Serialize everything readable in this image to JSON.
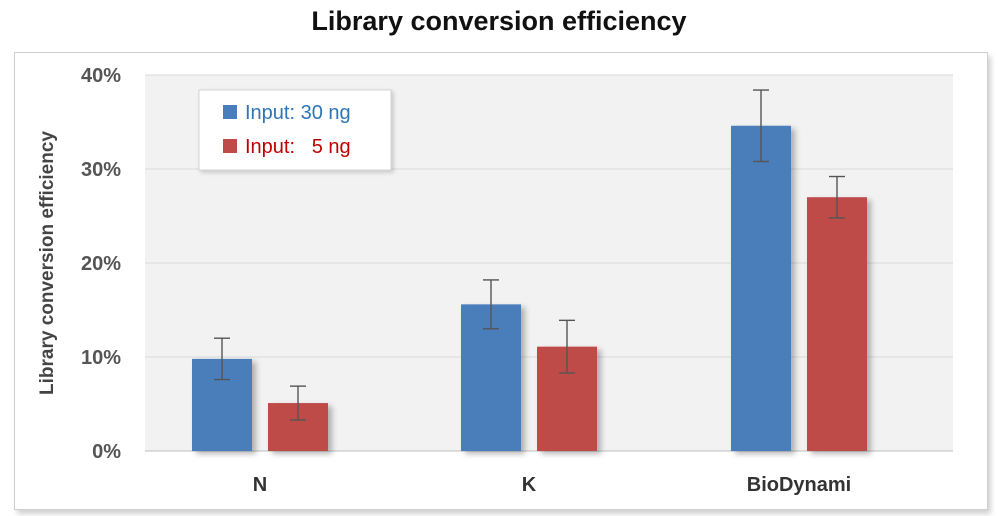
{
  "chart_data": {
    "type": "bar",
    "title": "Library conversion efficiency",
    "xlabel": "",
    "ylabel": "Library conversion efficiency",
    "categories": [
      "N",
      "K",
      "BioDynami"
    ],
    "series": [
      {
        "name": "Input: 30 ng",
        "color": "#4a7ebb",
        "values": [
          9.8,
          15.6,
          34.6
        ],
        "error": [
          2.2,
          2.6,
          3.8
        ]
      },
      {
        "name": "Input:   5 ng",
        "color": "#be4b48",
        "values": [
          5.1,
          11.1,
          27.0
        ],
        "error": [
          1.8,
          2.8,
          2.2
        ]
      }
    ],
    "ylim": [
      0,
      40
    ],
    "yticks": [
      "0%",
      "10%",
      "20%",
      "30%",
      "40%"
    ],
    "grid": true,
    "legend": "top-left",
    "legend_text_colors": [
      "#2e75b6",
      "#c00000"
    ]
  }
}
